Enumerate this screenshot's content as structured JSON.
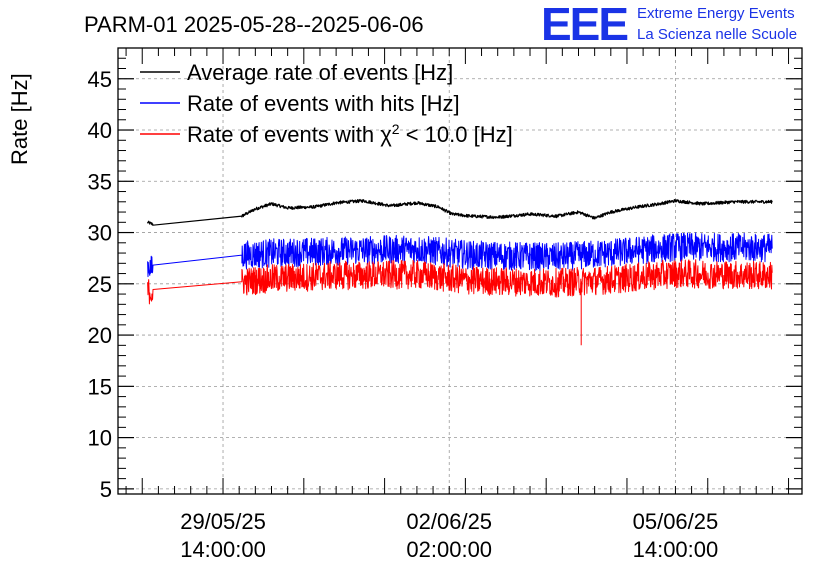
{
  "chart_data": {
    "type": "line",
    "title": "PARM-01 2025-05-28--2025-06-06",
    "ylabel": "Rate [Hz]",
    "xlabel": "",
    "ylim": [
      4.5,
      48
    ],
    "yticks": [
      5,
      10,
      15,
      20,
      25,
      30,
      35,
      40,
      45
    ],
    "xlim": [
      "2025-05-27T23:00:00",
      "2025-06-07T13:00:00"
    ],
    "xticks": [
      {
        "time": "2025-05-29T14:00:00",
        "date": "29/05/25",
        "clock": "14:00:00"
      },
      {
        "time": "2025-06-02T02:00:00",
        "date": "02/06/25",
        "clock": "02:00:00"
      },
      {
        "time": "2025-06-05T14:00:00",
        "date": "05/06/25",
        "clock": "14:00:00"
      }
    ],
    "grid": true,
    "legend_position": "top-left",
    "series": [
      {
        "name": "Average rate of events [Hz]",
        "color": "#000000",
        "noise": 0.15,
        "points": [
          [
            "2025-05-28T10:00:00",
            31.0
          ],
          [
            "2025-05-28T12:00:00",
            30.8
          ],
          [
            "2025-05-29T21:00:00",
            31.6
          ],
          [
            "2025-05-30T02:00:00",
            32.3
          ],
          [
            "2025-05-30T08:00:00",
            32.8
          ],
          [
            "2025-05-30T14:00:00",
            32.4
          ],
          [
            "2025-05-31T00:00:00",
            32.5
          ],
          [
            "2025-05-31T08:00:00",
            32.9
          ],
          [
            "2025-05-31T18:00:00",
            33.1
          ],
          [
            "2025-06-01T04:00:00",
            32.6
          ],
          [
            "2025-06-01T14:00:00",
            32.9
          ],
          [
            "2025-06-01T22:00:00",
            32.5
          ],
          [
            "2025-06-02T03:00:00",
            31.8
          ],
          [
            "2025-06-02T10:00:00",
            31.6
          ],
          [
            "2025-06-02T20:00:00",
            31.5
          ],
          [
            "2025-06-03T08:00:00",
            31.8
          ],
          [
            "2025-06-03T18:00:00",
            31.6
          ],
          [
            "2025-06-04T02:00:00",
            32.0
          ],
          [
            "2025-06-04T08:00:00",
            31.4
          ],
          [
            "2025-06-04T14:00:00",
            32.0
          ],
          [
            "2025-06-05T00:00:00",
            32.5
          ],
          [
            "2025-06-05T08:00:00",
            32.8
          ],
          [
            "2025-06-05T14:00:00",
            33.1
          ],
          [
            "2025-06-06T00:00:00",
            32.8
          ],
          [
            "2025-06-06T12:00:00",
            33.0
          ],
          [
            "2025-06-07T02:00:00",
            33.0
          ]
        ]
      },
      {
        "name": "Rate of events with hits [Hz]",
        "color": "#0000ff",
        "noise": 1.4,
        "points": [
          [
            "2025-05-28T10:00:00",
            26.8
          ],
          [
            "2025-05-28T12:00:00",
            26.4
          ],
          [
            "2025-05-29T21:00:00",
            27.8
          ],
          [
            "2025-05-30T08:00:00",
            28.0
          ],
          [
            "2025-05-31T08:00:00",
            28.2
          ],
          [
            "2025-06-01T14:00:00",
            28.4
          ],
          [
            "2025-06-02T10:00:00",
            27.8
          ],
          [
            "2025-06-03T18:00:00",
            27.6
          ],
          [
            "2025-06-04T14:00:00",
            28.0
          ],
          [
            "2025-06-05T14:00:00",
            28.6
          ],
          [
            "2025-06-07T02:00:00",
            28.5
          ]
        ]
      },
      {
        "name": "Rate of events with χ² < 10.0 [Hz]",
        "color": "#ff0000",
        "noise": 1.4,
        "points": [
          [
            "2025-05-28T10:00:00",
            24.4
          ],
          [
            "2025-05-28T12:00:00",
            24.0
          ],
          [
            "2025-05-29T21:00:00",
            25.2
          ],
          [
            "2025-05-30T08:00:00",
            25.5
          ],
          [
            "2025-05-31T08:00:00",
            25.8
          ],
          [
            "2025-06-01T14:00:00",
            25.9
          ],
          [
            "2025-06-02T10:00:00",
            25.3
          ],
          [
            "2025-06-03T18:00:00",
            25.1
          ],
          [
            "2025-06-04T14:00:00",
            25.4
          ],
          [
            "2025-06-05T14:00:00",
            26.0
          ],
          [
            "2025-06-07T02:00:00",
            25.8
          ]
        ],
        "spikes": [
          [
            "2025-06-04T03:00:00",
            19.0
          ]
        ]
      }
    ]
  },
  "header": {
    "logo_text": "EEE",
    "org_line1": "Extreme Energy Events",
    "org_line2": "La Scienza nelle Scuole"
  },
  "legend": {
    "item1": "Average rate of events [Hz]",
    "item2": "Rate of events with hits [Hz]",
    "item3_prefix": "Rate of events with ",
    "item3_symbol": "χ",
    "item3_sup": "2",
    "item3_suffix": " < 10.0 [Hz]"
  }
}
